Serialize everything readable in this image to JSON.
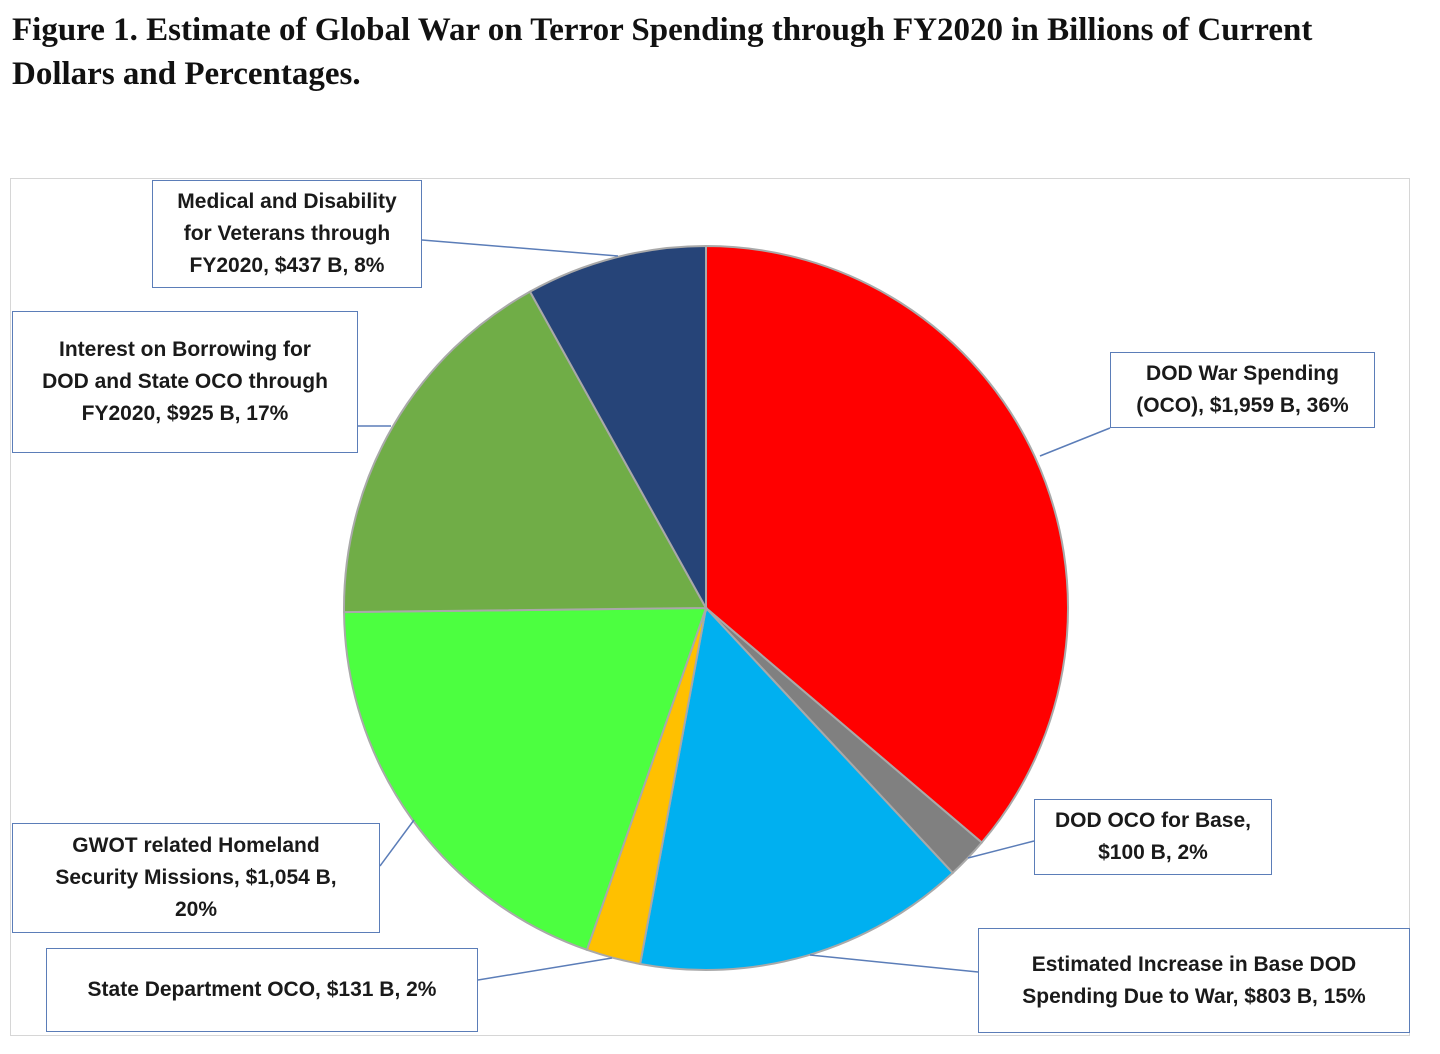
{
  "figure": {
    "title": "Figure 1. Estimate of Global War on Terror Spending through FY2020 in Billions of Current Dollars and Percentages."
  },
  "chart_data": {
    "type": "pie",
    "title": "Figure 1. Estimate of Global War on Terror Spending through FY2020 in Billions of Current Dollars and Percentages.",
    "units": "Billions of Current Dollars",
    "start_angle": "12 o'clock, clockwise",
    "slices": [
      {
        "name": "DOD War Spending (OCO)",
        "value": 1959,
        "percent": 36,
        "color": "#ff0000",
        "label_lines": [
          "DOD War Spending",
          "(OCO),  $1,959 B, 36%"
        ]
      },
      {
        "name": "DOD OCO for Base",
        "value": 100,
        "percent": 2,
        "color": "#808080",
        "label_lines": [
          "DOD OCO for Base,",
          "$100 B, 2%"
        ]
      },
      {
        "name": "Estimated Increase in Base DOD Spending Due to War",
        "value": 803,
        "percent": 15,
        "color": "#00b0f0",
        "label_lines": [
          "Estimated Increase in Base DOD",
          "Spending Due to War,  $803 B, 15%"
        ]
      },
      {
        "name": "State Department OCO",
        "value": 131,
        "percent": 2,
        "color": "#ffc000",
        "label_lines": [
          "State Department OCO,  $131 B, 2%"
        ]
      },
      {
        "name": "GWOT related Homeland Security Missions",
        "value": 1054,
        "percent": 20,
        "color": "#4cff40",
        "label_lines": [
          "GWOT related Homeland",
          "Security Missions,  $1,054 B,",
          "20%"
        ]
      },
      {
        "name": "Interest on Borrowing for DOD and State OCO through FY2020",
        "value": 925,
        "percent": 17,
        "color": "#70ad47",
        "label_lines": [
          "Interest on Borrowing for",
          "DOD and State OCO through",
          "FY2020,  $925 B, 17%"
        ]
      },
      {
        "name": "Medical and Disability for Veterans through FY2020",
        "value": 437,
        "percent": 8,
        "color": "#264478",
        "label_lines": [
          "Medical and Disability",
          "for Veterans through",
          "FY2020,  $437 B, 8%"
        ]
      }
    ]
  }
}
